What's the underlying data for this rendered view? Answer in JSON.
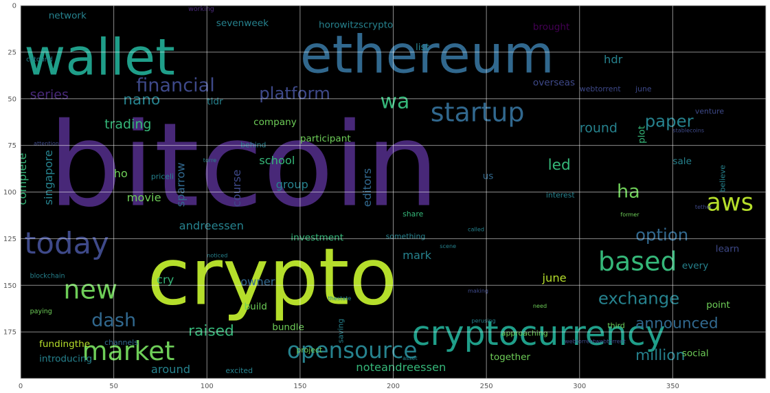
{
  "chart_data": {
    "type": "wordcloud",
    "image_extent": {
      "x": [
        0,
        400
      ],
      "y": [
        0,
        200
      ]
    },
    "x_ticks": [
      0,
      50,
      100,
      150,
      200,
      250,
      300,
      350
    ],
    "y_ticks": [
      0,
      25,
      50,
      75,
      100,
      125,
      150,
      175
    ],
    "grid": true,
    "background": "#000000",
    "palette": [
      "#440154",
      "#482878",
      "#3e4989",
      "#31688e",
      "#26828e",
      "#1f9e89",
      "#35b779",
      "#6ece58",
      "#b5de2b"
    ],
    "words": [
      {
        "text": "bitcoin",
        "x": 15,
        "y": 107,
        "size": 62,
        "color": "#482878"
      },
      {
        "text": "crypto",
        "x": 68,
        "y": 160,
        "size": 42,
        "color": "#b5de2b"
      },
      {
        "text": "ethereum",
        "x": 150,
        "y": 36,
        "size": 28,
        "color": "#31688e"
      },
      {
        "text": "wallet",
        "x": 2,
        "y": 37,
        "size": 27,
        "color": "#1f9e89"
      },
      {
        "text": "cryptocurrency",
        "x": 210,
        "y": 182,
        "size": 18,
        "color": "#1f9e89"
      },
      {
        "text": "today",
        "x": 2,
        "y": 133,
        "size": 16,
        "color": "#3e4989"
      },
      {
        "text": "market",
        "x": 33,
        "y": 190,
        "size": 14,
        "color": "#6ece58"
      },
      {
        "text": "new",
        "x": 23,
        "y": 157,
        "size": 14,
        "color": "#6ece58"
      },
      {
        "text": "based",
        "x": 310,
        "y": 142,
        "size": 14,
        "color": "#35b779"
      },
      {
        "text": "startup",
        "x": 220,
        "y": 62,
        "size": 14,
        "color": "#31688e"
      },
      {
        "text": "opensource",
        "x": 143,
        "y": 189,
        "size": 12,
        "color": "#26828e"
      },
      {
        "text": "financial",
        "x": 62,
        "y": 46,
        "size": 10,
        "color": "#3e4989"
      },
      {
        "text": "platform",
        "x": 128,
        "y": 50,
        "size": 9,
        "color": "#3e4989"
      },
      {
        "text": "paper",
        "x": 335,
        "y": 65,
        "size": 9,
        "color": "#26828e"
      },
      {
        "text": "round",
        "x": 300,
        "y": 68,
        "size": 7,
        "color": "#26828e"
      },
      {
        "text": "option",
        "x": 330,
        "y": 126,
        "size": 9,
        "color": "#31688e"
      },
      {
        "text": "exchange",
        "x": 310,
        "y": 160,
        "size": 9,
        "color": "#26828e"
      },
      {
        "text": "announced",
        "x": 330,
        "y": 173,
        "size": 8,
        "color": "#31688e"
      },
      {
        "text": "dash",
        "x": 38,
        "y": 172,
        "size": 10,
        "color": "#31688e"
      },
      {
        "text": "raised",
        "x": 90,
        "y": 177,
        "size": 8,
        "color": "#35b779"
      },
      {
        "text": "million",
        "x": 330,
        "y": 190,
        "size": 8,
        "color": "#26828e"
      },
      {
        "text": "trading",
        "x": 45,
        "y": 66,
        "size": 7,
        "color": "#35b779"
      },
      {
        "text": "nano",
        "x": 55,
        "y": 53,
        "size": 8,
        "color": "#26828e"
      },
      {
        "text": "series",
        "x": 5,
        "y": 50,
        "size": 7,
        "color": "#482878"
      },
      {
        "text": "aws",
        "x": 368,
        "y": 110,
        "size": 13,
        "color": "#b5de2b"
      },
      {
        "text": "wa",
        "x": 193,
        "y": 55,
        "size": 11,
        "color": "#35b779"
      },
      {
        "text": "network",
        "x": 15,
        "y": 7,
        "size": 5,
        "color": "#26828e"
      },
      {
        "text": "sevenweek",
        "x": 105,
        "y": 11,
        "size": 5,
        "color": "#26828e"
      },
      {
        "text": "horowitzscrypto",
        "x": 160,
        "y": 12,
        "size": 5,
        "color": "#26828e"
      },
      {
        "text": "list",
        "x": 212,
        "y": 24,
        "size": 5,
        "color": "#26828e"
      },
      {
        "text": "brought",
        "x": 275,
        "y": 13,
        "size": 5,
        "color": "#440154"
      },
      {
        "text": "hdr",
        "x": 313,
        "y": 31,
        "size": 6,
        "color": "#26828e"
      },
      {
        "text": "working",
        "x": 90,
        "y": 3,
        "size": 3.5,
        "color": "#482878"
      },
      {
        "text": "overseas",
        "x": 275,
        "y": 43,
        "size": 5,
        "color": "#3e4989"
      },
      {
        "text": "webtorrent",
        "x": 300,
        "y": 46,
        "size": 4,
        "color": "#3e4989"
      },
      {
        "text": "june",
        "x": 330,
        "y": 46,
        "size": 4,
        "color": "#3e4989"
      },
      {
        "text": "tldr",
        "x": 100,
        "y": 53,
        "size": 5,
        "color": "#26828e"
      },
      {
        "text": "company",
        "x": 125,
        "y": 64,
        "size": 5,
        "color": "#6ece58"
      },
      {
        "text": "participant",
        "x": 150,
        "y": 73,
        "size": 5,
        "color": "#6ece58"
      },
      {
        "text": "singapore",
        "x": 17,
        "y": 107,
        "size": 6,
        "color": "#26828e",
        "rotate": -90
      },
      {
        "text": "complete",
        "x": 3,
        "y": 107,
        "size": 6,
        "color": "#35b779",
        "rotate": -90
      },
      {
        "text": "sparrow",
        "x": 88,
        "y": 108,
        "size": 6,
        "color": "#31688e",
        "rotate": -90
      },
      {
        "text": "course",
        "x": 118,
        "y": 108,
        "size": 6,
        "color": "#3e4989",
        "rotate": -90
      },
      {
        "text": "editors",
        "x": 188,
        "y": 108,
        "size": 6,
        "color": "#31688e",
        "rotate": -90
      },
      {
        "text": "ho",
        "x": 50,
        "y": 92,
        "size": 6,
        "color": "#6ece58"
      },
      {
        "text": "movie",
        "x": 57,
        "y": 105,
        "size": 6,
        "color": "#6ece58"
      },
      {
        "text": "school",
        "x": 128,
        "y": 85,
        "size": 6,
        "color": "#35b779"
      },
      {
        "text": "group",
        "x": 137,
        "y": 98,
        "size": 6,
        "color": "#26828e"
      },
      {
        "text": "us",
        "x": 248,
        "y": 93,
        "size": 5,
        "color": "#31688e"
      },
      {
        "text": "led",
        "x": 283,
        "y": 88,
        "size": 8,
        "color": "#35b779"
      },
      {
        "text": "ha",
        "x": 320,
        "y": 103,
        "size": 10,
        "color": "#6ece58"
      },
      {
        "text": "andreessen",
        "x": 85,
        "y": 120,
        "size": 6,
        "color": "#26828e"
      },
      {
        "text": "investment",
        "x": 145,
        "y": 126,
        "size": 5,
        "color": "#35b779"
      },
      {
        "text": "something",
        "x": 196,
        "y": 125,
        "size": 4,
        "color": "#26828e"
      },
      {
        "text": "mark",
        "x": 205,
        "y": 136,
        "size": 6,
        "color": "#26828e"
      },
      {
        "text": "cry",
        "x": 73,
        "y": 149,
        "size": 6,
        "color": "#35b779"
      },
      {
        "text": "owner",
        "x": 118,
        "y": 150,
        "size": 6,
        "color": "#31688e"
      },
      {
        "text": "build",
        "x": 120,
        "y": 163,
        "size": 5,
        "color": "#6ece58"
      },
      {
        "text": "bundle",
        "x": 135,
        "y": 174,
        "size": 5,
        "color": "#6ece58"
      },
      {
        "text": "june",
        "x": 280,
        "y": 148,
        "size": 6,
        "color": "#b5de2b"
      },
      {
        "text": "every",
        "x": 355,
        "y": 141,
        "size": 5,
        "color": "#26828e"
      },
      {
        "text": "learn",
        "x": 373,
        "y": 132,
        "size": 5,
        "color": "#3e4989"
      },
      {
        "text": "point",
        "x": 368,
        "y": 162,
        "size": 5,
        "color": "#6ece58"
      },
      {
        "text": "social",
        "x": 355,
        "y": 188,
        "size": 5,
        "color": "#6ece58"
      },
      {
        "text": "together",
        "x": 252,
        "y": 190,
        "size": 5,
        "color": "#6ece58"
      },
      {
        "text": "noteandreessen",
        "x": 180,
        "y": 196,
        "size": 6,
        "color": "#35b779"
      },
      {
        "text": "around",
        "x": 70,
        "y": 197,
        "size": 6,
        "color": "#26828e"
      },
      {
        "text": "introducing",
        "x": 10,
        "y": 191,
        "size": 5,
        "color": "#26828e"
      },
      {
        "text": "fundingthe",
        "x": 10,
        "y": 183,
        "size": 5,
        "color": "#b5de2b"
      },
      {
        "text": "channels",
        "x": 45,
        "y": 182,
        "size": 4,
        "color": "#31688e"
      },
      {
        "text": "excited",
        "x": 110,
        "y": 197,
        "size": 4,
        "color": "#26828e"
      },
      {
        "text": "sale",
        "x": 350,
        "y": 85,
        "size": 5,
        "color": "#26828e"
      },
      {
        "text": "venture",
        "x": 362,
        "y": 58,
        "size": 4,
        "color": "#3e4989"
      },
      {
        "text": "cotound",
        "x": 3,
        "y": 30,
        "size": 3.5,
        "color": "#26828e"
      },
      {
        "text": "blockchain",
        "x": 5,
        "y": 146,
        "size": 3.5,
        "color": "#26828e"
      },
      {
        "text": "paying",
        "x": 5,
        "y": 165,
        "size": 3.5,
        "color": "#6ece58"
      },
      {
        "text": "priceli",
        "x": 70,
        "y": 93,
        "size": 4,
        "color": "#26828e"
      },
      {
        "text": "share",
        "x": 205,
        "y": 113,
        "size": 4,
        "color": "#35b779"
      },
      {
        "text": "interest",
        "x": 282,
        "y": 103,
        "size": 4,
        "color": "#26828e"
      },
      {
        "text": "plot",
        "x": 335,
        "y": 74,
        "size": 5,
        "color": "#35b779",
        "rotate": -90
      },
      {
        "text": "believe",
        "x": 378,
        "y": 100,
        "size": 4,
        "color": "#26828e",
        "rotate": -90
      },
      {
        "text": "saving",
        "x": 173,
        "y": 181,
        "size": 4,
        "color": "#26828e",
        "rotate": -90
      },
      {
        "text": "third",
        "x": 315,
        "y": 173,
        "size": 4,
        "color": "#6ece58"
      },
      {
        "text": "approaching",
        "x": 258,
        "y": 177,
        "size": 4,
        "color": "#6ece58"
      },
      {
        "text": "project",
        "x": 148,
        "y": 186,
        "size": 4,
        "color": "#6ece58"
      },
      {
        "text": "stablecoins",
        "x": 350,
        "y": 68,
        "size": 3,
        "color": "#3e4989"
      },
      {
        "text": "behind",
        "x": 118,
        "y": 76,
        "size": 4,
        "color": "#26828e"
      },
      {
        "text": "attention",
        "x": 7,
        "y": 75,
        "size": 3,
        "color": "#3e4989"
      },
      {
        "text": "torre",
        "x": 98,
        "y": 84,
        "size": 3,
        "color": "#26828e"
      },
      {
        "text": "thestate",
        "x": 165,
        "y": 158,
        "size": 3,
        "color": "#26828e"
      },
      {
        "text": "making",
        "x": 240,
        "y": 154,
        "size": 3,
        "color": "#3e4989"
      },
      {
        "text": "called",
        "x": 240,
        "y": 121,
        "size": 3,
        "color": "#26828e"
      },
      {
        "text": "need",
        "x": 275,
        "y": 162,
        "size": 3,
        "color": "#6ece58"
      },
      {
        "text": "webtorrentwebtorrent",
        "x": 292,
        "y": 181,
        "size": 3,
        "color": "#3e4989"
      },
      {
        "text": "former",
        "x": 322,
        "y": 113,
        "size": 3,
        "color": "#6ece58"
      },
      {
        "text": "noticed",
        "x": 100,
        "y": 135,
        "size": 3,
        "color": "#26828e"
      },
      {
        "text": "scene",
        "x": 225,
        "y": 130,
        "size": 3,
        "color": "#26828e"
      },
      {
        "text": "tether",
        "x": 362,
        "y": 109,
        "size": 3,
        "color": "#3e4989"
      },
      {
        "text": "perusing",
        "x": 242,
        "y": 170,
        "size": 3,
        "color": "#26828e"
      },
      {
        "text": "asset",
        "x": 205,
        "y": 190,
        "size": 3,
        "color": "#26828e"
      }
    ]
  }
}
